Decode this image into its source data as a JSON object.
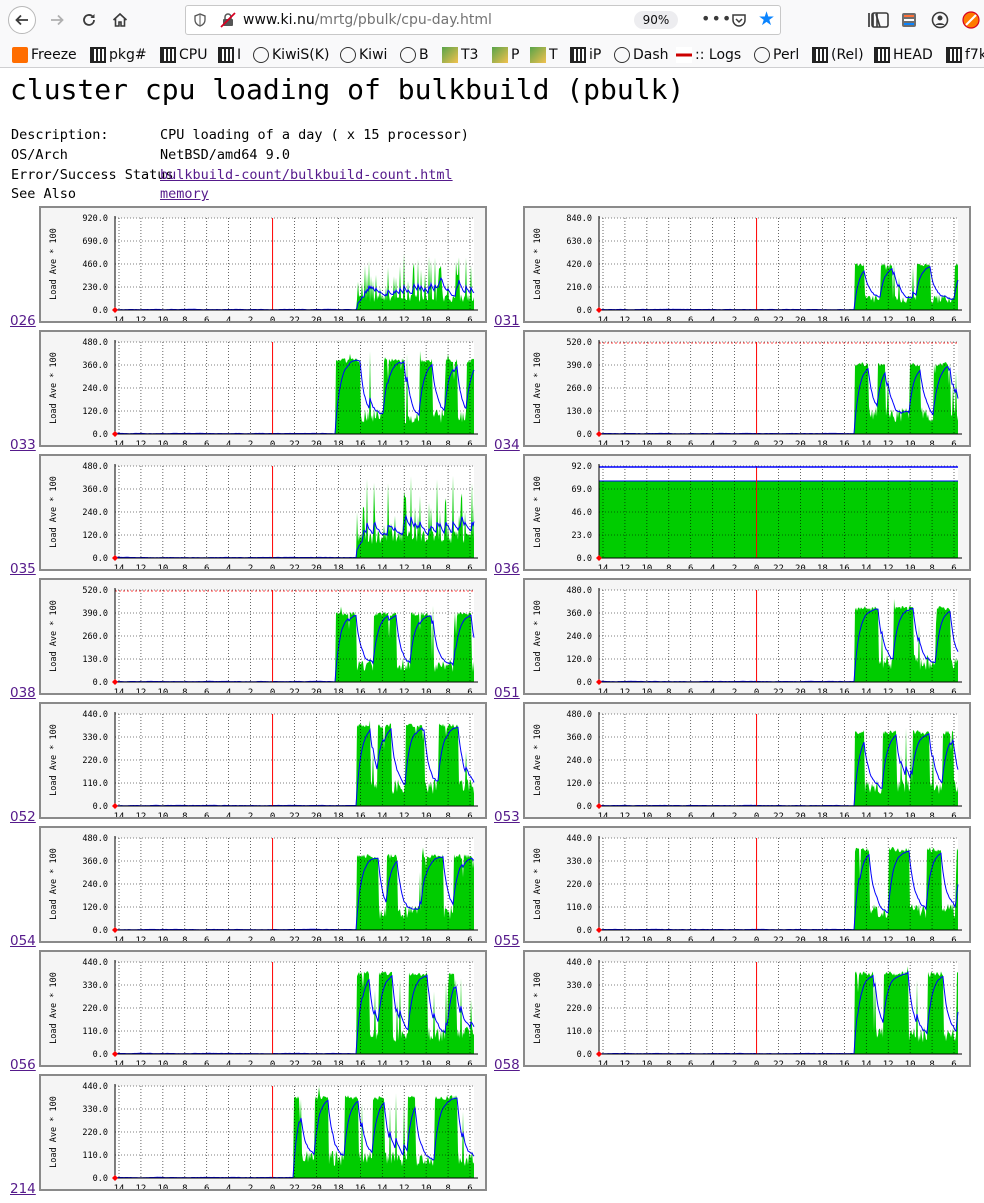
{
  "browser": {
    "url_host": "www.ki.nu",
    "url_path": "/mrtg/pbulk/cpu-day.html",
    "zoom": "90%",
    "bookmarks": [
      "Freeze",
      "pkg#",
      "CPU",
      "I",
      "KiwiS(K)",
      "Kiwi",
      "B",
      "T3",
      "P",
      "T",
      "iP",
      "Dash",
      ":: Logs",
      "Perl",
      "(Rel)",
      "HEAD",
      "f7k"
    ],
    "icons": [
      "back-arrow-icon",
      "forward-arrow-icon",
      "reload-icon",
      "home-icon",
      "shield-icon",
      "insecure-lock-icon",
      "more-dots-icon",
      "pocket-icon",
      "star-icon",
      "library-icon",
      "sidebar-icon",
      "extension-icon",
      "account-icon",
      "addon-icon"
    ]
  },
  "page": {
    "title": "cluster cpu loading of bulkbuild (pbulk)",
    "info": [
      {
        "key": "Description:",
        "value": "CPU loading of a day ( x 15 processor)",
        "link": false
      },
      {
        "key": "OS/Arch",
        "value": "NetBSD/amd64 9.0",
        "link": false
      },
      {
        "key": "Error/Success Status",
        "value": "bulkbuild-count/bulkbuild-count.html",
        "link": true
      },
      {
        "key": "See Also",
        "value": "memory",
        "link": true
      }
    ]
  },
  "chart_data": [
    {
      "host": "026",
      "type": "area",
      "ylabel": "Load Ave * 100",
      "ylim": [
        0,
        920
      ],
      "yticks": [
        "0.0",
        "230.0",
        "460.0",
        "690.0",
        "920.0"
      ],
      "xticks": [
        "14",
        "12",
        "10",
        "8",
        "6",
        "4",
        "2",
        "0",
        "22",
        "20",
        "18",
        "16",
        "14",
        "12",
        "10",
        "8",
        "6"
      ],
      "idle_until_hour": 8.5,
      "profile": "spiky",
      "base": 130,
      "peak": 520,
      "max_line": false
    },
    {
      "host": "031",
      "type": "area",
      "ylabel": "Load Ave * 100",
      "ylim": [
        0,
        840
      ],
      "yticks": [
        "0.0",
        "210.0",
        "420.0",
        "630.0",
        "840.0"
      ],
      "xticks": [
        "14",
        "12",
        "10",
        "8",
        "6",
        "4",
        "2",
        "0",
        "22",
        "20",
        "18",
        "16",
        "14",
        "12",
        "10",
        "8",
        "6"
      ],
      "idle_until_hour": 7.5,
      "profile": "spiky-plateau",
      "base": 120,
      "peak": 430,
      "max_line": false
    },
    {
      "host": "033",
      "type": "area",
      "ylabel": "Load Ave * 100",
      "ylim": [
        0,
        480
      ],
      "yticks": [
        "0.0",
        "120.0",
        "240.0",
        "360.0",
        "480.0"
      ],
      "xticks": [
        "14",
        "12",
        "10",
        "8",
        "6",
        "4",
        "2",
        "0",
        "22",
        "20",
        "18",
        "16",
        "14",
        "12",
        "10",
        "8",
        "6"
      ],
      "idle_until_hour": 10,
      "profile": "blocky",
      "base": 110,
      "peak": 400,
      "max_line": false
    },
    {
      "host": "034",
      "type": "area",
      "ylabel": "Load Ave * 100",
      "ylim": [
        0,
        520
      ],
      "yticks": [
        "0.0",
        "130.0",
        "260.0",
        "390.0",
        "520.0"
      ],
      "xticks": [
        "14",
        "12",
        "10",
        "8",
        "6",
        "4",
        "2",
        "0",
        "22",
        "20",
        "18",
        "16",
        "14",
        "12",
        "10",
        "8",
        "6"
      ],
      "idle_until_hour": 7.5,
      "profile": "spiky-plateau",
      "base": 130,
      "peak": 410,
      "max_line": true
    },
    {
      "host": "035",
      "type": "area",
      "ylabel": "Load Ave * 100",
      "ylim": [
        0,
        480
      ],
      "yticks": [
        "0.0",
        "120.0",
        "240.0",
        "360.0",
        "480.0"
      ],
      "xticks": [
        "14",
        "12",
        "10",
        "8",
        "6",
        "4",
        "2",
        "0",
        "22",
        "20",
        "18",
        "16",
        "14",
        "12",
        "10",
        "8",
        "6"
      ],
      "idle_until_hour": 8.5,
      "profile": "spiky",
      "base": 120,
      "peak": 400,
      "max_line": false
    },
    {
      "host": "036",
      "type": "area",
      "ylabel": "Load Ave * 100",
      "ylim": [
        0,
        92
      ],
      "yticks": [
        "0.0",
        "23.0",
        "46.0",
        "69.0",
        "92.0"
      ],
      "xticks": [
        "14",
        "12",
        "10",
        "8",
        "6",
        "4",
        "2",
        "0",
        "22",
        "20",
        "18",
        "16",
        "14",
        "12",
        "10",
        "8",
        "6"
      ],
      "idle_until_hour": 99,
      "profile": "flat",
      "base": 77,
      "peak": 77,
      "max_line": true
    },
    {
      "host": "038",
      "type": "area",
      "ylabel": "Load Ave * 100",
      "ylim": [
        0,
        520
      ],
      "yticks": [
        "0.0",
        "130.0",
        "260.0",
        "390.0",
        "520.0"
      ],
      "xticks": [
        "14",
        "12",
        "10",
        "8",
        "6",
        "4",
        "2",
        "0",
        "22",
        "20",
        "18",
        "16",
        "14",
        "12",
        "10",
        "8",
        "6"
      ],
      "idle_until_hour": 10,
      "profile": "blocky",
      "base": 110,
      "peak": 400,
      "max_line": true
    },
    {
      "host": "051",
      "type": "area",
      "ylabel": "Load Ave * 100",
      "ylim": [
        0,
        480
      ],
      "yticks": [
        "0.0",
        "120.0",
        "240.0",
        "360.0",
        "480.0"
      ],
      "xticks": [
        "14",
        "12",
        "10",
        "8",
        "6",
        "4",
        "2",
        "0",
        "22",
        "20",
        "18",
        "16",
        "14",
        "12",
        "10",
        "8",
        "6"
      ],
      "idle_until_hour": 7.5,
      "profile": "spiky-plateau",
      "base": 120,
      "peak": 400,
      "max_line": false
    },
    {
      "host": "052",
      "type": "area",
      "ylabel": "Load Ave * 100",
      "ylim": [
        0,
        440
      ],
      "yticks": [
        "0.0",
        "110.0",
        "220.0",
        "330.0",
        "440.0"
      ],
      "xticks": [
        "14",
        "12",
        "10",
        "8",
        "6",
        "4",
        "2",
        "0",
        "22",
        "20",
        "18",
        "16",
        "14",
        "12",
        "10",
        "8",
        "6"
      ],
      "idle_until_hour": 8.5,
      "profile": "blocky",
      "base": 110,
      "peak": 400,
      "max_line": false
    },
    {
      "host": "053",
      "type": "area",
      "ylabel": "Load Ave * 100",
      "ylim": [
        0,
        480
      ],
      "yticks": [
        "0.0",
        "120.0",
        "240.0",
        "360.0",
        "480.0"
      ],
      "xticks": [
        "14",
        "12",
        "10",
        "8",
        "6",
        "4",
        "2",
        "0",
        "22",
        "20",
        "18",
        "16",
        "14",
        "12",
        "10",
        "8",
        "6"
      ],
      "idle_until_hour": 7.5,
      "profile": "spiky-plateau",
      "base": 120,
      "peak": 400,
      "max_line": false
    },
    {
      "host": "054",
      "type": "area",
      "ylabel": "Load Ave * 100",
      "ylim": [
        0,
        480
      ],
      "yticks": [
        "0.0",
        "120.0",
        "240.0",
        "360.0",
        "480.0"
      ],
      "xticks": [
        "14",
        "12",
        "10",
        "8",
        "6",
        "4",
        "2",
        "0",
        "22",
        "20",
        "18",
        "16",
        "14",
        "12",
        "10",
        "8",
        "6"
      ],
      "idle_until_hour": 8.5,
      "profile": "blocky",
      "base": 110,
      "peak": 400,
      "max_line": false
    },
    {
      "host": "055",
      "type": "area",
      "ylabel": "Load Ave * 100",
      "ylim": [
        0,
        440
      ],
      "yticks": [
        "0.0",
        "110.0",
        "220.0",
        "330.0",
        "440.0"
      ],
      "xticks": [
        "14",
        "12",
        "10",
        "8",
        "6",
        "4",
        "2",
        "0",
        "22",
        "20",
        "18",
        "16",
        "14",
        "12",
        "10",
        "8",
        "6"
      ],
      "idle_until_hour": 7.5,
      "profile": "spiky-plateau",
      "base": 110,
      "peak": 400,
      "max_line": false
    },
    {
      "host": "056",
      "type": "area",
      "ylabel": "Load Ave * 100",
      "ylim": [
        0,
        440
      ],
      "yticks": [
        "0.0",
        "110.0",
        "220.0",
        "330.0",
        "440.0"
      ],
      "xticks": [
        "14",
        "12",
        "10",
        "8",
        "6",
        "4",
        "2",
        "0",
        "22",
        "20",
        "18",
        "16",
        "14",
        "12",
        "10",
        "8",
        "6"
      ],
      "idle_until_hour": 8.5,
      "profile": "blocky",
      "base": 110,
      "peak": 400,
      "max_line": false
    },
    {
      "host": "058",
      "type": "area",
      "ylabel": "Load Ave * 100",
      "ylim": [
        0,
        440
      ],
      "yticks": [
        "0.0",
        "110.0",
        "220.0",
        "330.0",
        "440.0"
      ],
      "xticks": [
        "14",
        "12",
        "10",
        "8",
        "6",
        "4",
        "2",
        "0",
        "22",
        "20",
        "18",
        "16",
        "14",
        "12",
        "10",
        "8",
        "6"
      ],
      "idle_until_hour": 7.5,
      "profile": "blocky",
      "base": 110,
      "peak": 400,
      "max_line": false
    },
    {
      "host": "214",
      "type": "area",
      "ylabel": "Load Ave * 100",
      "ylim": [
        0,
        440
      ],
      "yticks": [
        "0.0",
        "110.0",
        "220.0",
        "330.0",
        "440.0"
      ],
      "xticks": [
        "14",
        "12",
        "10",
        "8",
        "6",
        "4",
        "2",
        "0",
        "22",
        "20",
        "18",
        "16",
        "14",
        "12",
        "10",
        "8",
        "6"
      ],
      "idle_until_hour": 13,
      "profile": "blocky",
      "base": 110,
      "peak": 400,
      "max_line": false
    }
  ]
}
